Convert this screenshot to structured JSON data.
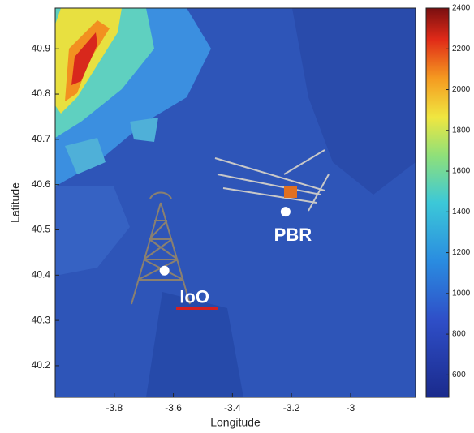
{
  "chart_data": {
    "type": "map",
    "x_label": "Longitude",
    "y_label": "Latitude",
    "xlim": [
      -4.0,
      -2.78
    ],
    "ylim": [
      40.13,
      40.99
    ],
    "xticks": [
      -3.8,
      -3.6,
      -3.4,
      -3.2,
      -3
    ],
    "yticks": [
      40.2,
      40.3,
      40.4,
      40.5,
      40.6,
      40.7,
      40.8,
      40.9
    ],
    "colorbar": {
      "lim": [
        490,
        2400
      ],
      "ticks": [
        600,
        800,
        1000,
        1200,
        1400,
        1600,
        1800,
        2000,
        2200,
        2400
      ]
    },
    "points": [
      {
        "label": "IoO",
        "lon": -3.63,
        "lat": 40.41
      },
      {
        "label": "PBR",
        "lon": -3.22,
        "lat": 40.54
      }
    ]
  }
}
